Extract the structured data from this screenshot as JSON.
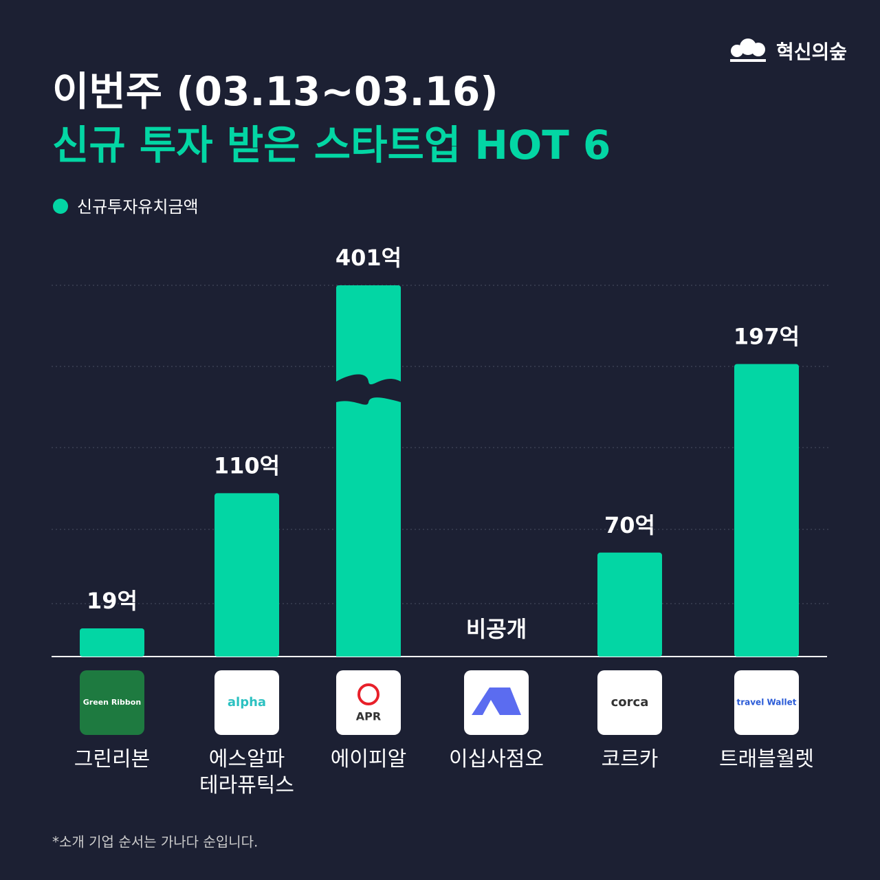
{
  "brand": "혁신의숲",
  "chart_data": {
    "type": "bar",
    "title": "이번주 (03.13~03.16)",
    "subtitle": "신규 투자 받은 스타트업 HOT 6",
    "categories": [
      "그린리본",
      "에스알파\n테라퓨틱스",
      "에이피알",
      "이십사점오",
      "코르카",
      "트래블월렛"
    ],
    "series": [
      {
        "name": "신규투자유치금액",
        "color": "#03d6a4",
        "values": [
          19,
          110,
          401,
          null,
          70,
          197
        ],
        "value_labels": [
          "19억",
          "110억",
          "401억",
          "비공개",
          "70억",
          "197억"
        ]
      }
    ],
    "ylim": [
      0,
      250
    ],
    "note": "*소개 기업 순서는 가나다 순입니다."
  },
  "logos": [
    "Green Ribbon",
    "alpha",
    "APR",
    "",
    "corca",
    "travel Wallet"
  ]
}
